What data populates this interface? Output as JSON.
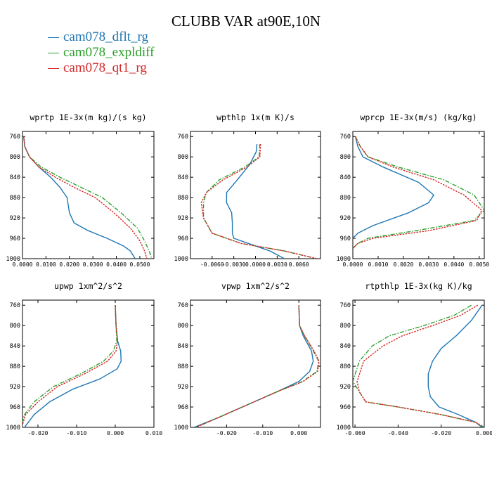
{
  "page": {
    "title": "CLUBB VAR at90E,10N"
  },
  "legend": [
    {
      "label": "cam078_dflt_rg",
      "color": "#1f77b4"
    },
    {
      "label": "cam078_expldiff",
      "color": "#2ca02c"
    },
    {
      "label": "cam078_qt1_rg",
      "color": "#d62728"
    }
  ],
  "chart_data": [
    {
      "type": "line",
      "title": "wprtp  1E-3x(m kg)/(s kg)",
      "xlim": [
        0,
        0.056
      ],
      "ylim": [
        1000,
        750
      ],
      "xticks": [
        0,
        0.01,
        0.02,
        0.03,
        0.04,
        0.05
      ],
      "xtick_labels": [
        "0.0000",
        "0.0100",
        "0.0200",
        "0.0300",
        "0.0400",
        "0.0500"
      ],
      "yticks": [
        760,
        800,
        840,
        880,
        920,
        960,
        1000
      ],
      "series": [
        {
          "name": "cam078_dflt_rg",
          "x": [
            0.0005,
            0.001,
            0.003,
            0.007,
            0.012,
            0.016,
            0.019,
            0.02,
            0.022,
            0.028,
            0.036,
            0.043,
            0.046,
            0.048
          ],
          "y": [
            760,
            780,
            800,
            820,
            840,
            860,
            880,
            910,
            930,
            945,
            960,
            975,
            985,
            1000
          ]
        },
        {
          "name": "cam078_expldiff",
          "x": [
            0.0005,
            0.001,
            0.003,
            0.008,
            0.016,
            0.025,
            0.034,
            0.042,
            0.049,
            0.052,
            0.054,
            0.055
          ],
          "y": [
            760,
            780,
            800,
            820,
            840,
            860,
            880,
            910,
            940,
            965,
            985,
            1000
          ]
        },
        {
          "name": "cam078_qt1_rg",
          "x": [
            0.0005,
            0.001,
            0.003,
            0.007,
            0.014,
            0.022,
            0.031,
            0.039,
            0.046,
            0.05,
            0.052,
            0.053
          ],
          "y": [
            760,
            780,
            800,
            820,
            840,
            860,
            880,
            910,
            940,
            965,
            985,
            1000
          ]
        }
      ]
    },
    {
      "type": "line",
      "title": "wpthlp  1x(m K)/s",
      "xlim": [
        -0.009,
        0.009
      ],
      "ylim": [
        1000,
        750
      ],
      "xticks": [
        -0.006,
        -0.003,
        0,
        0.003,
        0.006
      ],
      "xtick_labels": [
        "-0.0060",
        "-0.0030",
        "0.0000",
        "0.0030",
        "0.0060"
      ],
      "yticks": [
        760,
        800,
        840,
        880,
        920,
        960,
        1000
      ],
      "series": [
        {
          "name": "cam078_dflt_rg",
          "x": [
            0.0002,
            0.0001,
            -0.0008,
            -0.0028,
            -0.004,
            -0.004,
            -0.0033,
            -0.0032,
            -0.0032,
            -0.003,
            -0.001,
            0.002,
            0.004
          ],
          "y": [
            775,
            790,
            815,
            850,
            870,
            890,
            910,
            930,
            950,
            960,
            970,
            985,
            1000
          ]
        },
        {
          "name": "cam078_expldiff",
          "x": [
            0.0006,
            0.0005,
            -0.0015,
            -0.005,
            -0.0068,
            -0.0072,
            -0.0072,
            -0.006,
            -0.002,
            0.004,
            0.0085
          ],
          "y": [
            775,
            800,
            820,
            845,
            870,
            890,
            920,
            950,
            970,
            985,
            1000
          ]
        },
        {
          "name": "cam078_qt1_rg",
          "x": [
            0.0007,
            0.0006,
            -0.0012,
            -0.0045,
            -0.0068,
            -0.0075,
            -0.0072,
            -0.006,
            -0.002,
            0.004,
            0.0085
          ],
          "y": [
            775,
            800,
            820,
            845,
            870,
            890,
            920,
            950,
            970,
            985,
            1000
          ]
        }
      ]
    },
    {
      "type": "line",
      "title": "wprcp  1E-3x(m/s) (kg/kg)",
      "xlim": [
        0,
        0.0052
      ],
      "ylim": [
        1000,
        750
      ],
      "xticks": [
        0,
        0.001,
        0.002,
        0.003,
        0.004,
        0.005
      ],
      "xtick_labels": [
        "0.0000",
        "0.0010",
        "0.0020",
        "0.0030",
        "0.0040",
        "0.0050"
      ],
      "yticks": [
        760,
        800,
        840,
        880,
        920,
        960,
        1000
      ],
      "series": [
        {
          "name": "cam078_dflt_rg",
          "x": [
            0.0001,
            0.0002,
            0.0004,
            0.0012,
            0.0026,
            0.0032,
            0.003,
            0.0022,
            0.0008,
            0.0002,
            0
          ],
          "y": [
            760,
            780,
            800,
            820,
            850,
            875,
            890,
            910,
            935,
            950,
            960
          ]
        },
        {
          "name": "cam078_expldiff",
          "x": [
            0.0001,
            0.0003,
            0.0006,
            0.0018,
            0.0036,
            0.0048,
            0.0052,
            0.0048,
            0.0025,
            0.0006,
            0.0002,
            0
          ],
          "y": [
            760,
            780,
            800,
            820,
            845,
            875,
            905,
            925,
            945,
            960,
            970,
            980
          ]
        },
        {
          "name": "cam078_qt1_rg",
          "x": [
            0.0001,
            0.0003,
            0.0006,
            0.0016,
            0.0032,
            0.0044,
            0.0051,
            0.0049,
            0.003,
            0.0008,
            0.0002,
            0
          ],
          "y": [
            760,
            780,
            800,
            820,
            845,
            875,
            905,
            925,
            945,
            960,
            970,
            980
          ]
        }
      ]
    },
    {
      "type": "line",
      "title": "upwp  1xm^2/s^2",
      "xlim": [
        -0.024,
        0.01
      ],
      "ylim": [
        1000,
        750
      ],
      "xticks": [
        -0.02,
        -0.01,
        0,
        0.01
      ],
      "xtick_labels": [
        "-0.020",
        "-0.010",
        "0.000",
        "0.010"
      ],
      "yticks": [
        760,
        800,
        840,
        880,
        920,
        960,
        1000
      ],
      "series": [
        {
          "name": "cam078_dflt_rg",
          "x": [
            0,
            0.0002,
            0.0006,
            0.0014,
            0.0015,
            0.0005,
            -0.004,
            -0.011,
            -0.017,
            -0.021,
            -0.0235
          ],
          "y": [
            760,
            800,
            830,
            850,
            870,
            885,
            905,
            925,
            950,
            975,
            1000
          ]
        },
        {
          "name": "cam078_expldiff",
          "x": [
            0,
            0.0002,
            0.0004,
            -0.0005,
            -0.003,
            -0.009,
            -0.016,
            -0.021,
            -0.0235,
            -0.0245
          ],
          "y": [
            760,
            800,
            830,
            850,
            870,
            895,
            920,
            950,
            975,
            1000
          ]
        },
        {
          "name": "cam078_qt1_rg",
          "x": [
            0,
            0.0002,
            0.0006,
            0.0002,
            -0.002,
            -0.008,
            -0.015,
            -0.02,
            -0.0232,
            -0.0242
          ],
          "y": [
            760,
            800,
            830,
            850,
            870,
            895,
            920,
            950,
            975,
            1000
          ]
        }
      ]
    },
    {
      "type": "line",
      "title": "vpwp  1xm^2/s^2",
      "xlim": [
        -0.03,
        0.006
      ],
      "ylim": [
        1000,
        750
      ],
      "xticks": [
        -0.02,
        -0.01,
        0
      ],
      "xtick_labels": [
        "-0.020",
        "-0.010",
        "0.000"
      ],
      "yticks": [
        760,
        800,
        840,
        880,
        920,
        960,
        1000
      ],
      "series": [
        {
          "name": "cam078_dflt_rg",
          "x": [
            0,
            0.0002,
            0.0012,
            0.0035,
            0.004,
            0.003,
            0,
            -0.006,
            -0.014,
            -0.022,
            -0.029
          ],
          "y": [
            760,
            800,
            820,
            850,
            870,
            890,
            910,
            930,
            955,
            980,
            1000
          ]
        },
        {
          "name": "cam078_expldiff",
          "x": [
            0,
            0.0002,
            0.0015,
            0.004,
            0.0055,
            0.005,
            0.001,
            -0.006,
            -0.014,
            -0.022,
            -0.0285
          ],
          "y": [
            760,
            800,
            820,
            850,
            870,
            890,
            910,
            930,
            955,
            980,
            1000
          ]
        },
        {
          "name": "cam078_qt1_rg",
          "x": [
            0,
            0.0002,
            0.0016,
            0.0042,
            0.0056,
            0.0052,
            0.0012,
            -0.006,
            -0.014,
            -0.022,
            -0.0285
          ],
          "y": [
            760,
            800,
            820,
            850,
            870,
            890,
            910,
            930,
            955,
            980,
            1000
          ]
        }
      ]
    },
    {
      "type": "line",
      "title": "rtpthlp  1E-3x(kg K)/kg",
      "xlim": [
        -0.061,
        0
      ],
      "ylim": [
        1000,
        750
      ],
      "xticks": [
        -0.06,
        -0.04,
        -0.02,
        0
      ],
      "xtick_labels": [
        "-0.060",
        "-0.040",
        "-0.020",
        "0.000"
      ],
      "yticks": [
        760,
        800,
        840,
        880,
        920,
        960,
        1000
      ],
      "series": [
        {
          "name": "cam078_dflt_rg",
          "x": [
            -0.001,
            -0.006,
            -0.013,
            -0.02,
            -0.024,
            -0.026,
            -0.026,
            -0.025,
            -0.021,
            -0.012,
            -0.004,
            -0.001
          ],
          "y": [
            760,
            790,
            820,
            845,
            870,
            895,
            920,
            940,
            960,
            975,
            990,
            1000
          ]
        },
        {
          "name": "cam078_expldiff",
          "x": [
            -0.006,
            -0.014,
            -0.028,
            -0.044,
            -0.052,
            -0.058,
            -0.061,
            -0.058,
            -0.055,
            -0.04,
            -0.02,
            -0.004,
            0
          ],
          "y": [
            760,
            780,
            800,
            820,
            840,
            870,
            910,
            930,
            950,
            960,
            975,
            990,
            1000
          ]
        },
        {
          "name": "cam078_qt1_rg",
          "x": [
            -0.003,
            -0.011,
            -0.024,
            -0.038,
            -0.047,
            -0.056,
            -0.059,
            -0.058,
            -0.055,
            -0.04,
            -0.02,
            -0.004,
            0
          ],
          "y": [
            760,
            780,
            800,
            820,
            840,
            870,
            910,
            930,
            950,
            960,
            975,
            990,
            1000
          ]
        }
      ]
    }
  ]
}
